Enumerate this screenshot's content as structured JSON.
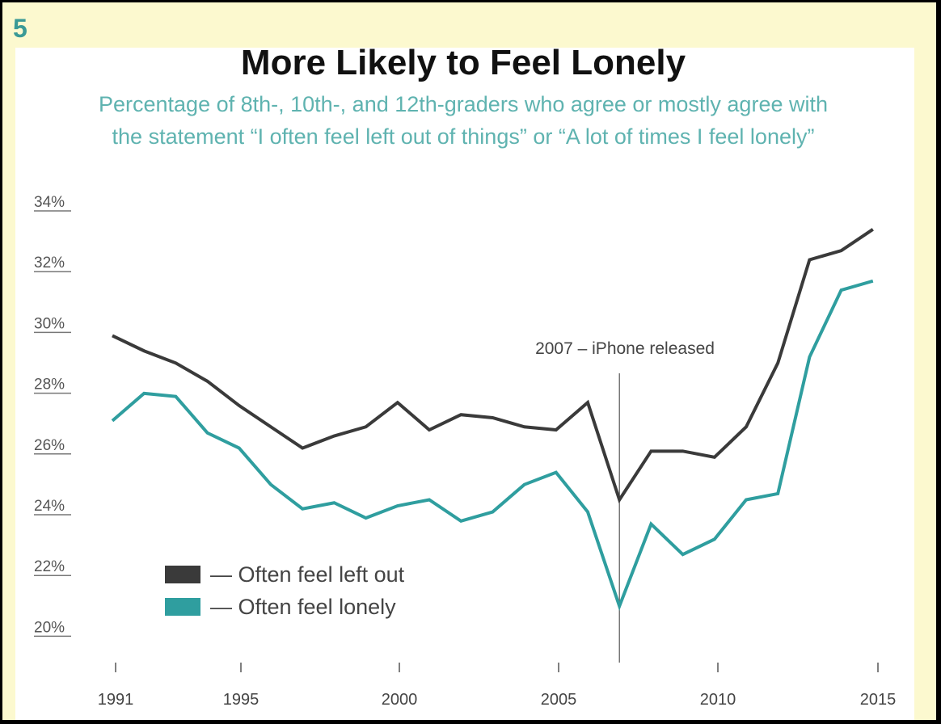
{
  "badge": "5",
  "chart_data": {
    "type": "line",
    "title": "More Likely to Feel Lonely",
    "subtitle": [
      "Percentage of 8th-, 10th-, and 12th-graders who agree or mostly agree with",
      "the statement “I often feel left out of things” or “A lot of times I feel lonely”"
    ],
    "xlabel": "",
    "ylabel": "",
    "ylim": [
      20,
      34
    ],
    "xlim": [
      1991,
      2015
    ],
    "yticks": [
      "20%",
      "22%",
      "24%",
      "26%",
      "28%",
      "30%",
      "32%",
      "34%"
    ],
    "ytick_values": [
      20,
      22,
      24,
      26,
      28,
      30,
      32,
      34
    ],
    "xticks": [
      "1991",
      "1995",
      "2000",
      "2005",
      "2010",
      "2015"
    ],
    "xtick_values": [
      1991,
      1995,
      2000,
      2005,
      2010,
      2015
    ],
    "x": [
      1991,
      1992,
      1993,
      1994,
      1995,
      1996,
      1997,
      1998,
      1999,
      2000,
      2001,
      2002,
      2003,
      2004,
      2005,
      2006,
      2007,
      2008,
      2009,
      2010,
      2011,
      2012,
      2013,
      2014,
      2015
    ],
    "series": [
      {
        "name": "Often feel left out",
        "color": "#3a3a3a",
        "values": [
          29.6,
          29.1,
          28.7,
          28.1,
          27.3,
          26.6,
          25.9,
          26.3,
          26.6,
          27.4,
          26.5,
          27.0,
          26.9,
          26.6,
          26.5,
          27.4,
          24.2,
          25.8,
          25.8,
          25.6,
          26.6,
          28.7,
          32.1,
          32.4,
          33.1
        ]
      },
      {
        "name": "Often feel lonely",
        "color": "#2f9e9f",
        "values": [
          26.8,
          27.7,
          27.6,
          26.4,
          25.9,
          24.7,
          23.9,
          24.1,
          23.6,
          24.0,
          24.2,
          23.5,
          23.8,
          24.7,
          25.1,
          23.8,
          20.7,
          23.4,
          22.4,
          22.9,
          24.2,
          24.4,
          28.9,
          31.1,
          31.4
        ]
      }
    ],
    "legend": [
      "— Often feel left out",
      "— Often feel lonely"
    ],
    "legend_position": "bottom-left",
    "annotation": {
      "x": 2007,
      "text": "2007 – iPhone released"
    },
    "grid": false
  }
}
